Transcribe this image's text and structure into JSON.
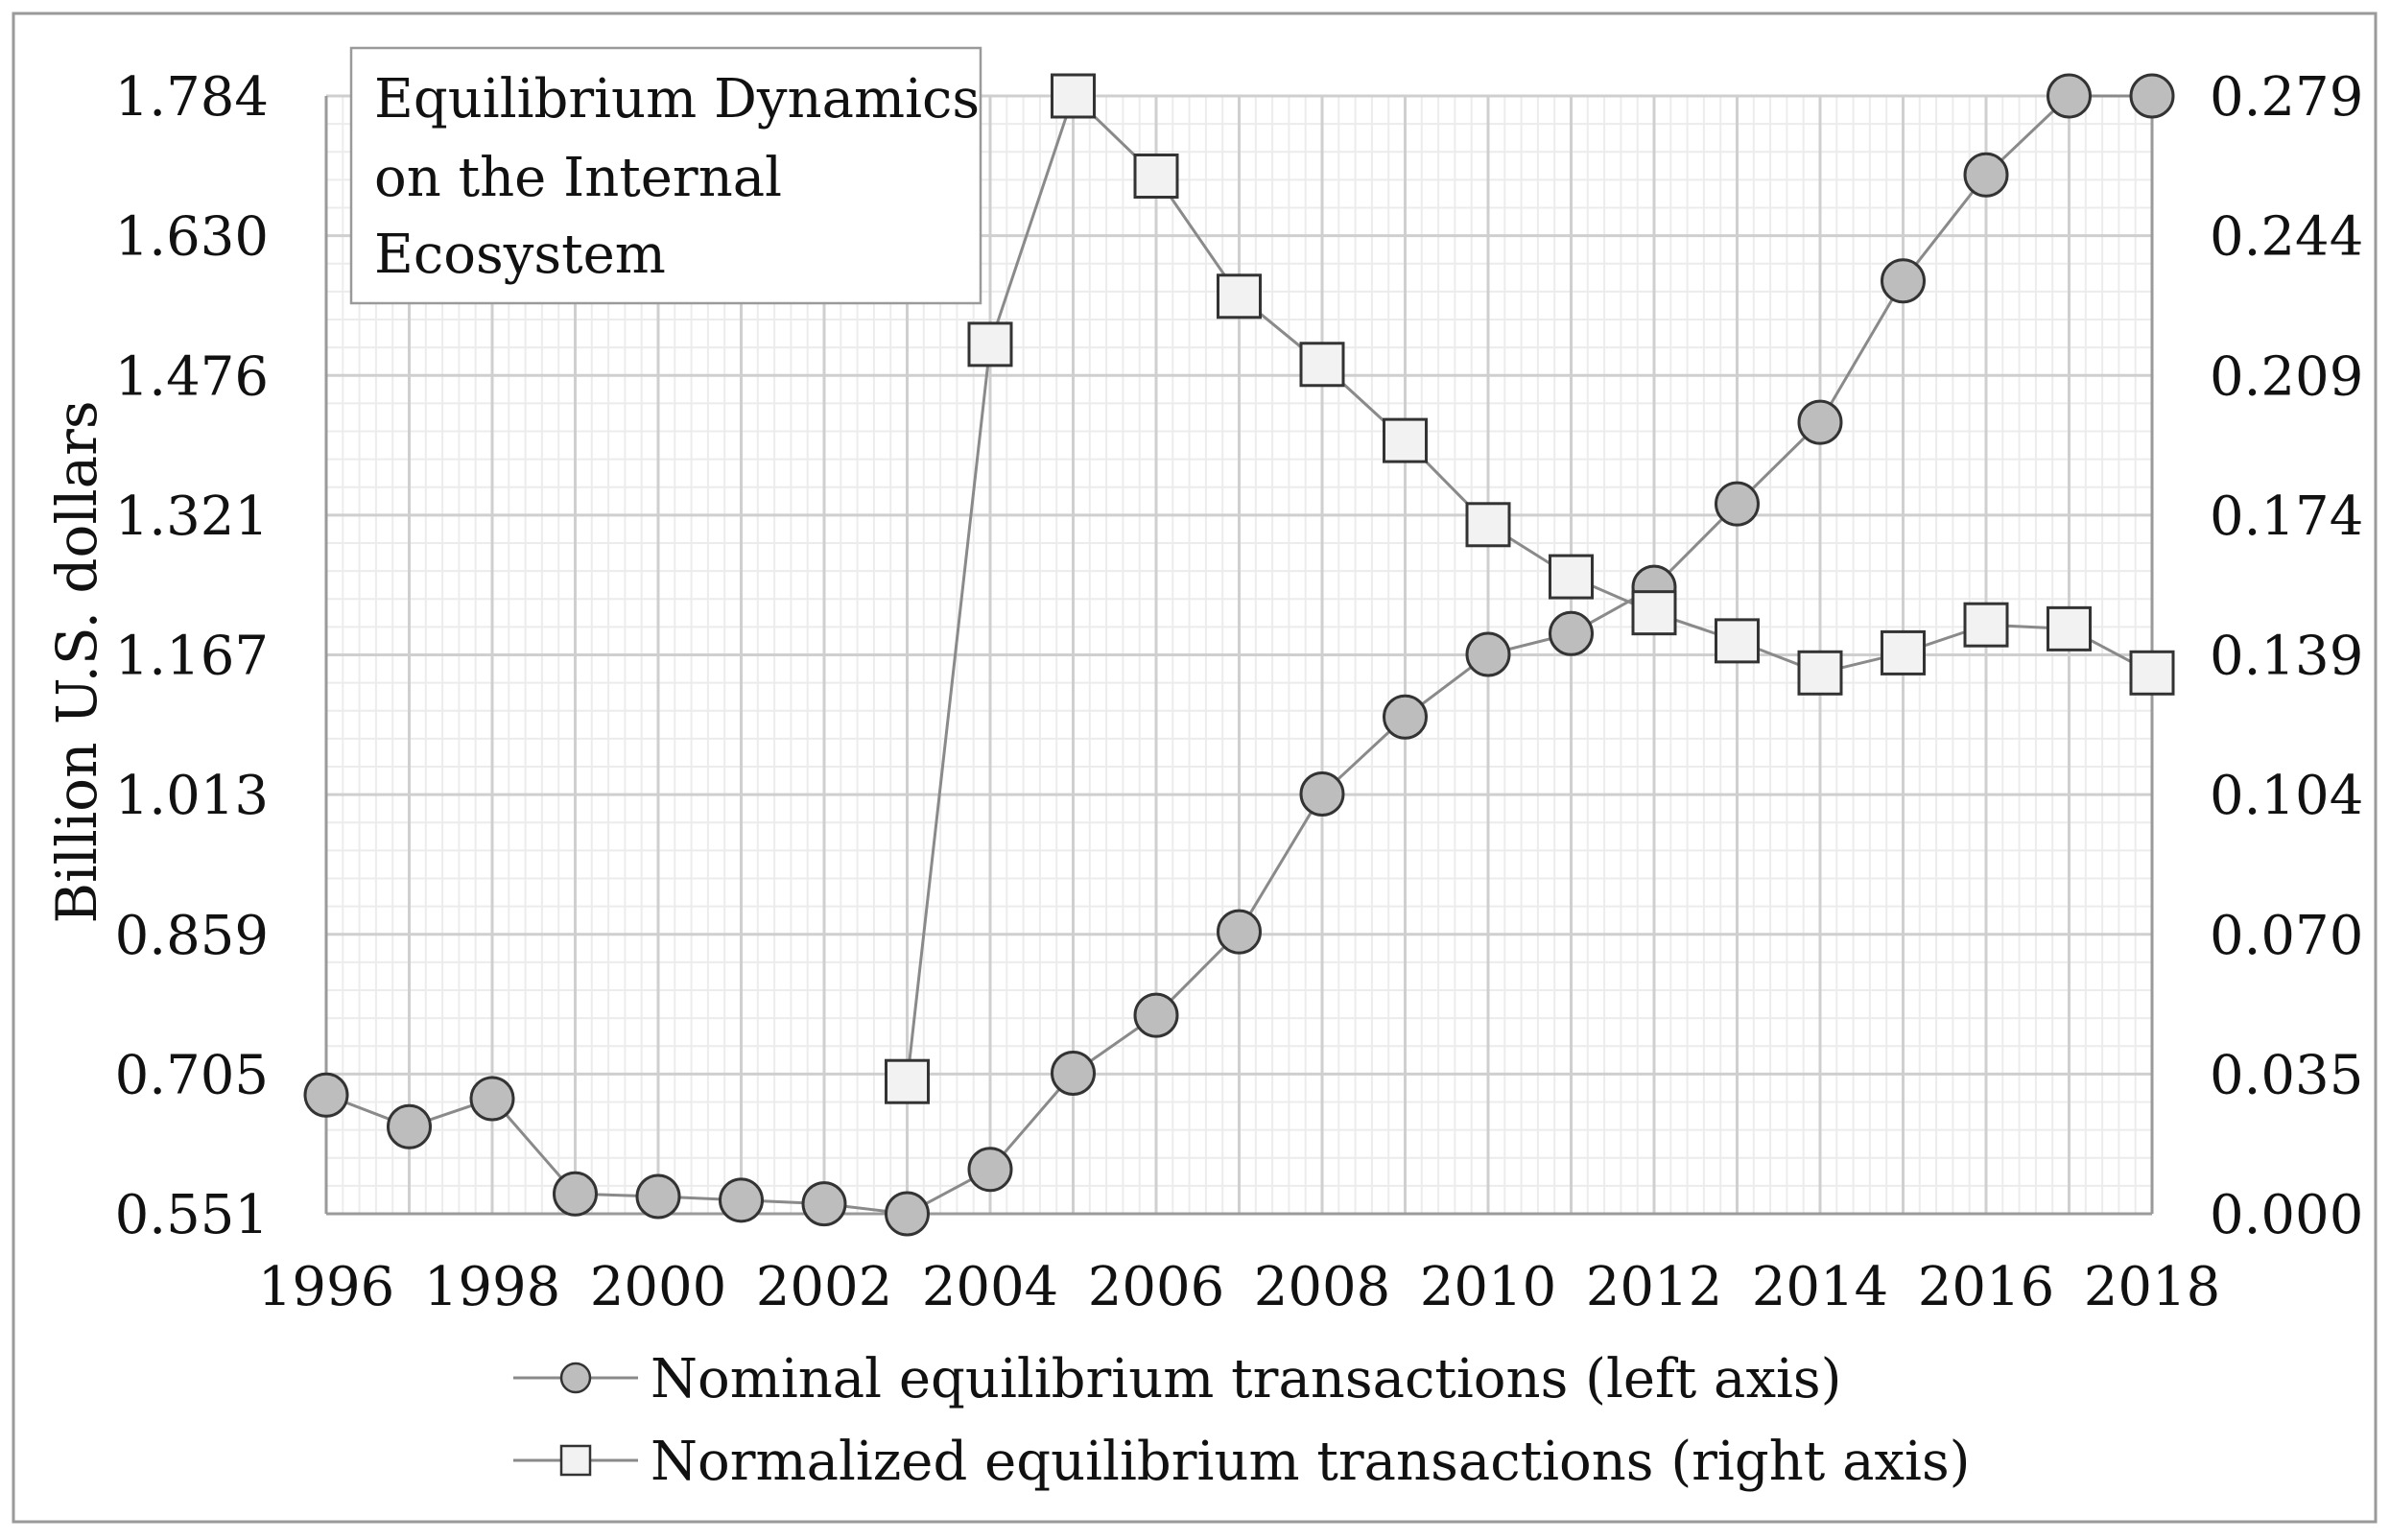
{
  "chart_data": {
    "type": "line",
    "title_lines": [
      "Equilibrium Dynamics",
      "on the Internal",
      "Ecosystem"
    ],
    "ylabel": "Billion U.S. dollars",
    "y2label": "",
    "xlabel": "",
    "x": [
      1996,
      1997,
      1998,
      1999,
      2000,
      2001,
      2002,
      2003,
      2004,
      2005,
      2006,
      2007,
      2008,
      2009,
      2010,
      2011,
      2012,
      2013,
      2014,
      2015,
      2016,
      2017,
      2018
    ],
    "x_tick_labels": [
      "1996",
      "1998",
      "2000",
      "2002",
      "2004",
      "2006",
      "2008",
      "2010",
      "2012",
      "2014",
      "2016",
      "2018"
    ],
    "xlim": [
      1996,
      2018
    ],
    "ylim": [
      0.551,
      1.784
    ],
    "y_tick_labels": [
      "0.551",
      "0.705",
      "0.859",
      "1.013",
      "1.167",
      "1.321",
      "1.476",
      "1.630",
      "1.784"
    ],
    "y2lim": [
      0.0,
      0.279
    ],
    "y2_tick_labels": [
      "0.000",
      "0.035",
      "0.070",
      "0.104",
      "0.139",
      "0.174",
      "0.209",
      "0.244",
      "0.279"
    ],
    "grid": true,
    "legend_position": "bottom",
    "series": [
      {
        "name": "Nominal equilibrium transactions (left axis)",
        "axis": "left",
        "marker": "circle",
        "values": [
          0.682,
          0.647,
          0.678,
          0.573,
          0.57,
          0.566,
          0.562,
          0.551,
          0.6,
          0.706,
          0.77,
          0.862,
          1.014,
          1.099,
          1.168,
          1.191,
          1.242,
          1.334,
          1.424,
          1.58,
          1.697,
          1.784,
          1.784
        ]
      },
      {
        "name": "Normalized equilibrium transactions (right axis)",
        "axis": "right",
        "marker": "square",
        "values": [
          null,
          null,
          null,
          null,
          null,
          null,
          null,
          0.033,
          0.217,
          0.279,
          0.259,
          0.229,
          0.212,
          0.193,
          0.172,
          0.159,
          0.15,
          0.143,
          0.135,
          0.14,
          0.147,
          0.146,
          0.135
        ]
      }
    ],
    "colors": {
      "line": "#8a8a8a",
      "circle_fill": "#bdbdbd",
      "square_fill": "#f2f2f2",
      "marker_stroke": "#333333",
      "major_grid": "#cfcfcf",
      "minor_grid": "#ececec",
      "frame": "#9a9a9a"
    }
  }
}
